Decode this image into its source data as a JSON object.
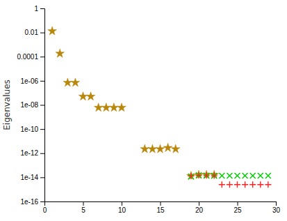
{
  "chart_data": {
    "type": "scatter",
    "ylabel": "Eigenvalues",
    "log": "y",
    "grid": false,
    "xlim": [
      0,
      30
    ],
    "xticks": [
      0,
      5,
      10,
      15,
      20,
      25,
      30
    ],
    "ylim": [
      1e-16,
      1
    ],
    "yticks": [
      {
        "value": 1e-16,
        "label": "1e-16"
      },
      {
        "value": 1e-14,
        "label": "1e-14"
      },
      {
        "value": 1e-12,
        "label": "1e-12"
      },
      {
        "value": 1e-10,
        "label": "1e-10"
      },
      {
        "value": 1e-08,
        "label": "1e-08"
      },
      {
        "value": 1e-06,
        "label": "1e-06"
      },
      {
        "value": 0.0001,
        "label": "0.0001"
      },
      {
        "value": 0.01,
        "label": "0.01"
      },
      {
        "value": 1,
        "label": "1"
      }
    ],
    "series": [
      {
        "color": "#b8860b",
        "marker": "star",
        "x": [
          1,
          2,
          3,
          4,
          5,
          6,
          7,
          8,
          9,
          10,
          13,
          14,
          15,
          16,
          17,
          19,
          20,
          21,
          22
        ],
        "values": [
          0.013,
          0.00018,
          7e-07,
          7e-07,
          5e-08,
          5e-08,
          6e-09,
          6e-09,
          6e-09,
          6e-09,
          2.2e-12,
          2.2e-12,
          2.2e-12,
          2.8e-12,
          2.2e-12,
          1.3e-14,
          1.6e-14,
          1.6e-14,
          1.6e-14
        ]
      },
      {
        "color": "#00cc00",
        "marker": "x",
        "x": [
          19,
          20,
          21,
          22,
          23,
          24,
          25,
          26,
          27,
          28,
          29
        ],
        "values": [
          1.2e-14,
          1.5e-14,
          1.4e-14,
          1.35e-14,
          1.35e-14,
          1.35e-14,
          1.35e-14,
          1.35e-14,
          1.35e-14,
          1.35e-14,
          1.35e-14
        ]
      },
      {
        "color": "#ff2222",
        "marker": "plus",
        "x": [
          19,
          20,
          21,
          22,
          23,
          24,
          25,
          26,
          27,
          28,
          29
        ],
        "values": [
          1.3e-14,
          1.45e-14,
          1.4e-14,
          1.35e-14,
          2.5e-15,
          2.5e-15,
          2.5e-15,
          2.5e-15,
          2.5e-15,
          2.5e-15,
          2.5e-15
        ]
      }
    ]
  }
}
